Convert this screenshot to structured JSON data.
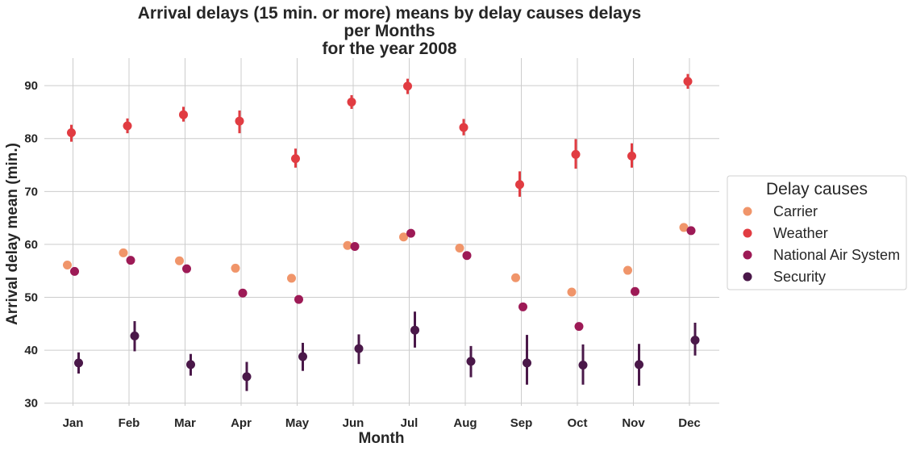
{
  "chart_data": {
    "type": "scatter",
    "title_lines": [
      "Arrival delays (15 min. or more) means by delay causes delays",
      "per Months",
      "for the year 2008"
    ],
    "xlabel": "Month",
    "ylabel": "Arrival delay mean (min.)",
    "categories": [
      "Jan",
      "Feb",
      "Mar",
      "Apr",
      "May",
      "Jun",
      "Jul",
      "Aug",
      "Sep",
      "Oct",
      "Nov",
      "Dec"
    ],
    "y_ticks": [
      30,
      40,
      50,
      60,
      70,
      80,
      90
    ],
    "ylim": [
      29.5,
      95.2
    ],
    "grid": true,
    "legend": {
      "title": "Delay causes",
      "placement": "right"
    },
    "series": [
      {
        "name": "Carrier",
        "color": "#f0956a",
        "values": [
          56.1,
          58.4,
          56.9,
          55.5,
          53.6,
          59.8,
          61.4,
          59.3,
          53.7,
          51.0,
          55.1,
          63.2
        ],
        "ci_low": [
          null,
          null,
          null,
          null,
          null,
          null,
          null,
          null,
          null,
          null,
          null,
          null
        ],
        "ci_high": [
          null,
          null,
          null,
          null,
          null,
          null,
          null,
          null,
          null,
          null,
          null,
          null
        ]
      },
      {
        "name": "Weather",
        "color": "#e13c42",
        "values": [
          81.1,
          82.4,
          84.5,
          83.3,
          76.2,
          86.9,
          89.9,
          82.1,
          71.3,
          77.0,
          76.7,
          90.8
        ],
        "ci_low": [
          79.4,
          81.0,
          83.2,
          81.0,
          74.5,
          85.6,
          88.4,
          80.6,
          69.0,
          74.3,
          74.5,
          89.4
        ],
        "ci_high": [
          82.6,
          83.8,
          86.0,
          85.3,
          78.1,
          88.2,
          91.3,
          83.7,
          73.8,
          79.9,
          79.1,
          92.2
        ]
      },
      {
        "name": "National Air System",
        "color": "#9d1a56",
        "values": [
          54.9,
          57.0,
          55.4,
          50.8,
          49.6,
          59.6,
          62.1,
          57.9,
          48.2,
          44.5,
          51.1,
          62.6
        ],
        "ci_low": [
          null,
          null,
          null,
          null,
          null,
          null,
          null,
          null,
          null,
          null,
          null,
          null
        ],
        "ci_high": [
          null,
          null,
          null,
          null,
          null,
          null,
          null,
          null,
          null,
          null,
          null,
          null
        ]
      },
      {
        "name": "Security",
        "color": "#4a1849",
        "values": [
          37.6,
          42.7,
          37.3,
          35.0,
          38.8,
          40.3,
          43.8,
          37.9,
          37.6,
          37.2,
          37.3,
          41.9
        ],
        "ci_low": [
          35.6,
          39.8,
          35.2,
          32.3,
          36.1,
          37.4,
          40.5,
          34.9,
          33.5,
          33.5,
          33.3,
          39.0
        ],
        "ci_high": [
          39.6,
          45.5,
          39.3,
          37.8,
          41.4,
          43.0,
          47.3,
          40.8,
          42.9,
          41.1,
          41.2,
          45.2
        ]
      }
    ]
  }
}
